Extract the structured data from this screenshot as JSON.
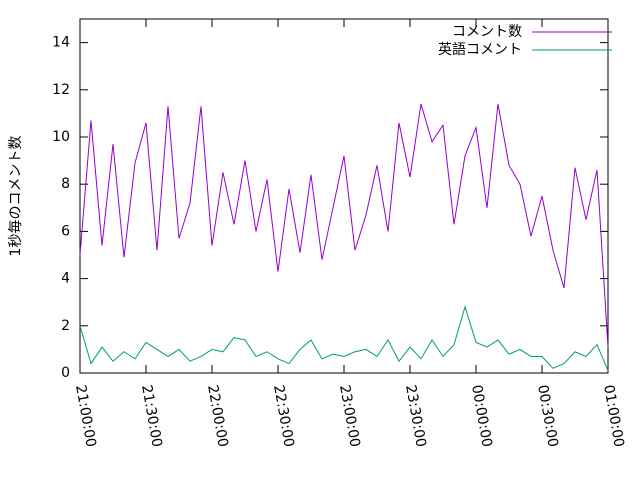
{
  "chart_data": {
    "type": "line",
    "ylabel": "1秒毎のコメント数",
    "x": [
      "21:00:00",
      "21:05:00",
      "21:10:00",
      "21:15:00",
      "21:20:00",
      "21:25:00",
      "21:30:00",
      "21:35:00",
      "21:40:00",
      "21:45:00",
      "21:50:00",
      "21:55:00",
      "22:00:00",
      "22:05:00",
      "22:10:00",
      "22:15:00",
      "22:20:00",
      "22:25:00",
      "22:30:00",
      "22:35:00",
      "22:40:00",
      "22:45:00",
      "22:50:00",
      "22:55:00",
      "23:00:00",
      "23:05:00",
      "23:10:00",
      "23:15:00",
      "23:20:00",
      "23:25:00",
      "23:30:00",
      "23:35:00",
      "23:40:00",
      "23:45:00",
      "23:50:00",
      "23:55:00",
      "00:00:00",
      "00:05:00",
      "00:10:00",
      "00:15:00",
      "00:20:00",
      "00:25:00",
      "00:30:00",
      "00:35:00",
      "00:40:00",
      "00:45:00",
      "00:50:00",
      "00:55:00",
      "01:00:00"
    ],
    "series": [
      {
        "name": "コメント数",
        "color": "#9400d3",
        "values": [
          5.0,
          10.7,
          5.4,
          9.7,
          4.9,
          8.9,
          10.6,
          5.2,
          11.3,
          5.7,
          7.2,
          11.3,
          5.4,
          8.5,
          6.3,
          9.0,
          6.0,
          8.2,
          4.3,
          7.8,
          5.1,
          8.4,
          4.8,
          7.0,
          9.2,
          5.2,
          6.7,
          8.8,
          6.0,
          10.6,
          8.3,
          11.4,
          9.8,
          10.5,
          6.3,
          9.2,
          10.4,
          7.0,
          11.4,
          8.8,
          8.0,
          5.8,
          7.5,
          5.2,
          3.6,
          8.7,
          6.5,
          8.6,
          1.1
        ]
      },
      {
        "name": "英語コメント",
        "color": "#009e73",
        "values": [
          2.0,
          0.4,
          1.1,
          0.5,
          0.9,
          0.6,
          1.3,
          1.0,
          0.7,
          1.0,
          0.5,
          0.7,
          1.0,
          0.9,
          1.5,
          1.4,
          0.7,
          0.9,
          0.6,
          0.4,
          1.0,
          1.4,
          0.6,
          0.8,
          0.7,
          0.9,
          1.0,
          0.7,
          1.4,
          0.5,
          1.1,
          0.6,
          1.4,
          0.7,
          1.2,
          2.8,
          1.3,
          1.1,
          1.4,
          0.8,
          1.0,
          0.7,
          0.7,
          0.2,
          0.4,
          0.9,
          0.7,
          1.2,
          0.1
        ]
      }
    ],
    "xlim": [
      "21:00:00",
      "01:00:00"
    ],
    "xticks": [
      "21:00:00",
      "21:30:00",
      "22:00:00",
      "22:30:00",
      "23:00:00",
      "23:30:00",
      "00:00:00",
      "00:30:00",
      "01:00:00"
    ],
    "ylim": [
      0,
      15
    ],
    "yticks": [
      0,
      2,
      4,
      6,
      8,
      10,
      12,
      14
    ],
    "legend": "top-right"
  }
}
